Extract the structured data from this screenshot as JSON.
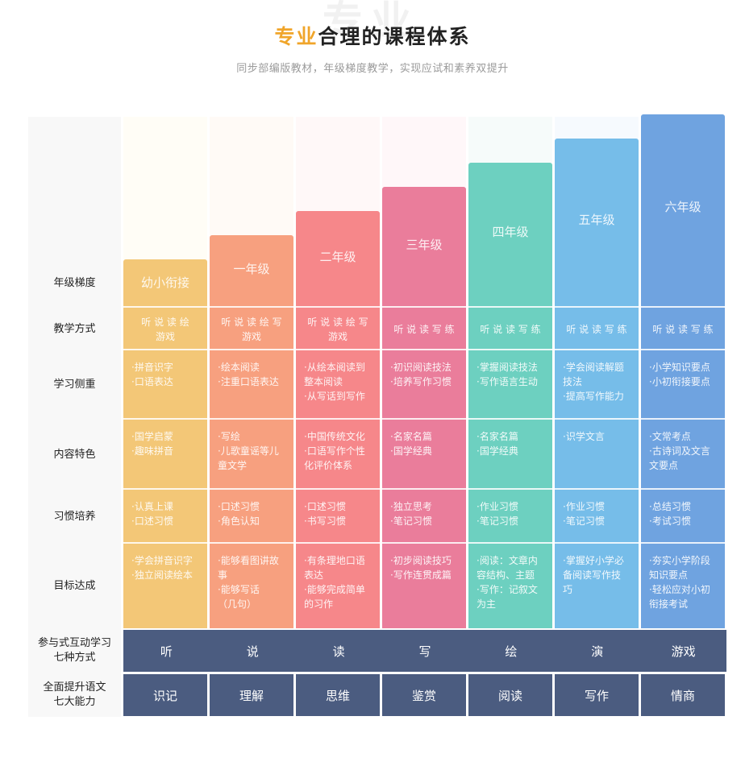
{
  "header": {
    "watermark": "专业",
    "title_accent": "专业",
    "title_rest": "合理的课程体系",
    "subtitle": "同步部编版教材，年级梯度教学，实现应试和素养双提升"
  },
  "row_labels": {
    "grade": "年级梯度",
    "method": "教学方式",
    "focus": "学习侧重",
    "content": "内容特色",
    "habit": "习惯培养",
    "goal": "目标达成",
    "modes_line1": "参与式互动学习",
    "modes_line2": "七种方式",
    "abilities_line1": "全面提升语文",
    "abilities_line2": "七大能力"
  },
  "colors": {
    "bridge": "#f3c777",
    "grade1": "#f7a07f",
    "grade2": "#f6878a",
    "grade3": "#ea7d9b",
    "grade4": "#6dd0c0",
    "grade5": "#76bde9",
    "grade6": "#6fa3e0",
    "dark_bar": "#4b5c80",
    "title_accent": "#f0a52a"
  },
  "columns": [
    {
      "grade": "幼小衔接",
      "method": [
        "听 说 读 绘",
        "游戏"
      ],
      "focus": [
        "·拼音识字",
        "·口语表达"
      ],
      "content": [
        "·国学启蒙",
        "·趣味拼音"
      ],
      "habit": [
        "·认真上课",
        "·口述习惯"
      ],
      "goal": [
        "·学会拼音识字",
        "·独立阅读绘本"
      ]
    },
    {
      "grade": "一年级",
      "method": [
        "听 说 读 绘 写",
        "游戏"
      ],
      "focus": [
        "·绘本阅读",
        "·注重口语表达"
      ],
      "content": [
        "·写绘",
        "·儿歌童谣等儿",
        " 童文学"
      ],
      "habit": [
        "·口述习惯",
        "·角色认知"
      ],
      "goal": [
        "·能够看图讲故",
        " 事",
        "·能够写话",
        " （几句）"
      ]
    },
    {
      "grade": "二年级",
      "method": [
        "听 说 读 绘 写",
        "游戏"
      ],
      "focus": [
        "·从绘本阅读到",
        " 整本阅读",
        "·从写话到写作"
      ],
      "content": [
        "·中国传统文化",
        "·口语写作个性",
        " 化评价体系"
      ],
      "habit": [
        "·口述习惯",
        "·书写习惯"
      ],
      "goal": [
        "·有条理地口语",
        " 表达",
        "·能够完成简单",
        " 的习作"
      ]
    },
    {
      "grade": "三年级",
      "method": [
        "听 说 读 写 练"
      ],
      "focus": [
        "·初识阅读技法",
        "·培养写作习惯"
      ],
      "content": [
        "·名家名篇",
        "·国学经典"
      ],
      "habit": [
        "·独立思考",
        "·笔记习惯"
      ],
      "goal": [
        "·初步阅读技巧",
        "·写作连贯成篇"
      ]
    },
    {
      "grade": "四年级",
      "method": [
        "听 说 读 写 练"
      ],
      "focus": [
        "·掌握阅读技法",
        "·写作语言生动"
      ],
      "content": [
        "·名家名篇",
        "·国学经典"
      ],
      "habit": [
        "·作业习惯",
        "·笔记习惯"
      ],
      "goal": [
        "·阅读：文章内",
        " 容结构、主题",
        "·写作：记叙文",
        " 为主"
      ]
    },
    {
      "grade": "五年级",
      "method": [
        "听 说 读 写 练"
      ],
      "focus": [
        "·学会阅读解题",
        " 技法",
        "·提高写作能力"
      ],
      "content": [
        "·识学文言"
      ],
      "habit": [
        "·作业习惯",
        "·笔记习惯"
      ],
      "goal": [
        "·掌握好小学必",
        " 备阅读写作技",
        " 巧"
      ]
    },
    {
      "grade": "六年级",
      "method": [
        "听 说 读 写 练"
      ],
      "focus": [
        "·小学知识要点",
        "·小初衔接要点"
      ],
      "content": [
        "·文常考点",
        "·古诗词及文言",
        " 文要点"
      ],
      "habit": [
        "·总结习惯",
        "·考试习惯"
      ],
      "goal": [
        "·夯实小学阶段",
        " 知识要点",
        "·轻松应对小初",
        " 衔接考试"
      ]
    }
  ],
  "modes": [
    "听",
    "说",
    "读",
    "写",
    "绘",
    "演",
    "游戏"
  ],
  "abilities": [
    "识记",
    "理解",
    "思维",
    "鉴赏",
    "阅读",
    "写作",
    "情商"
  ]
}
